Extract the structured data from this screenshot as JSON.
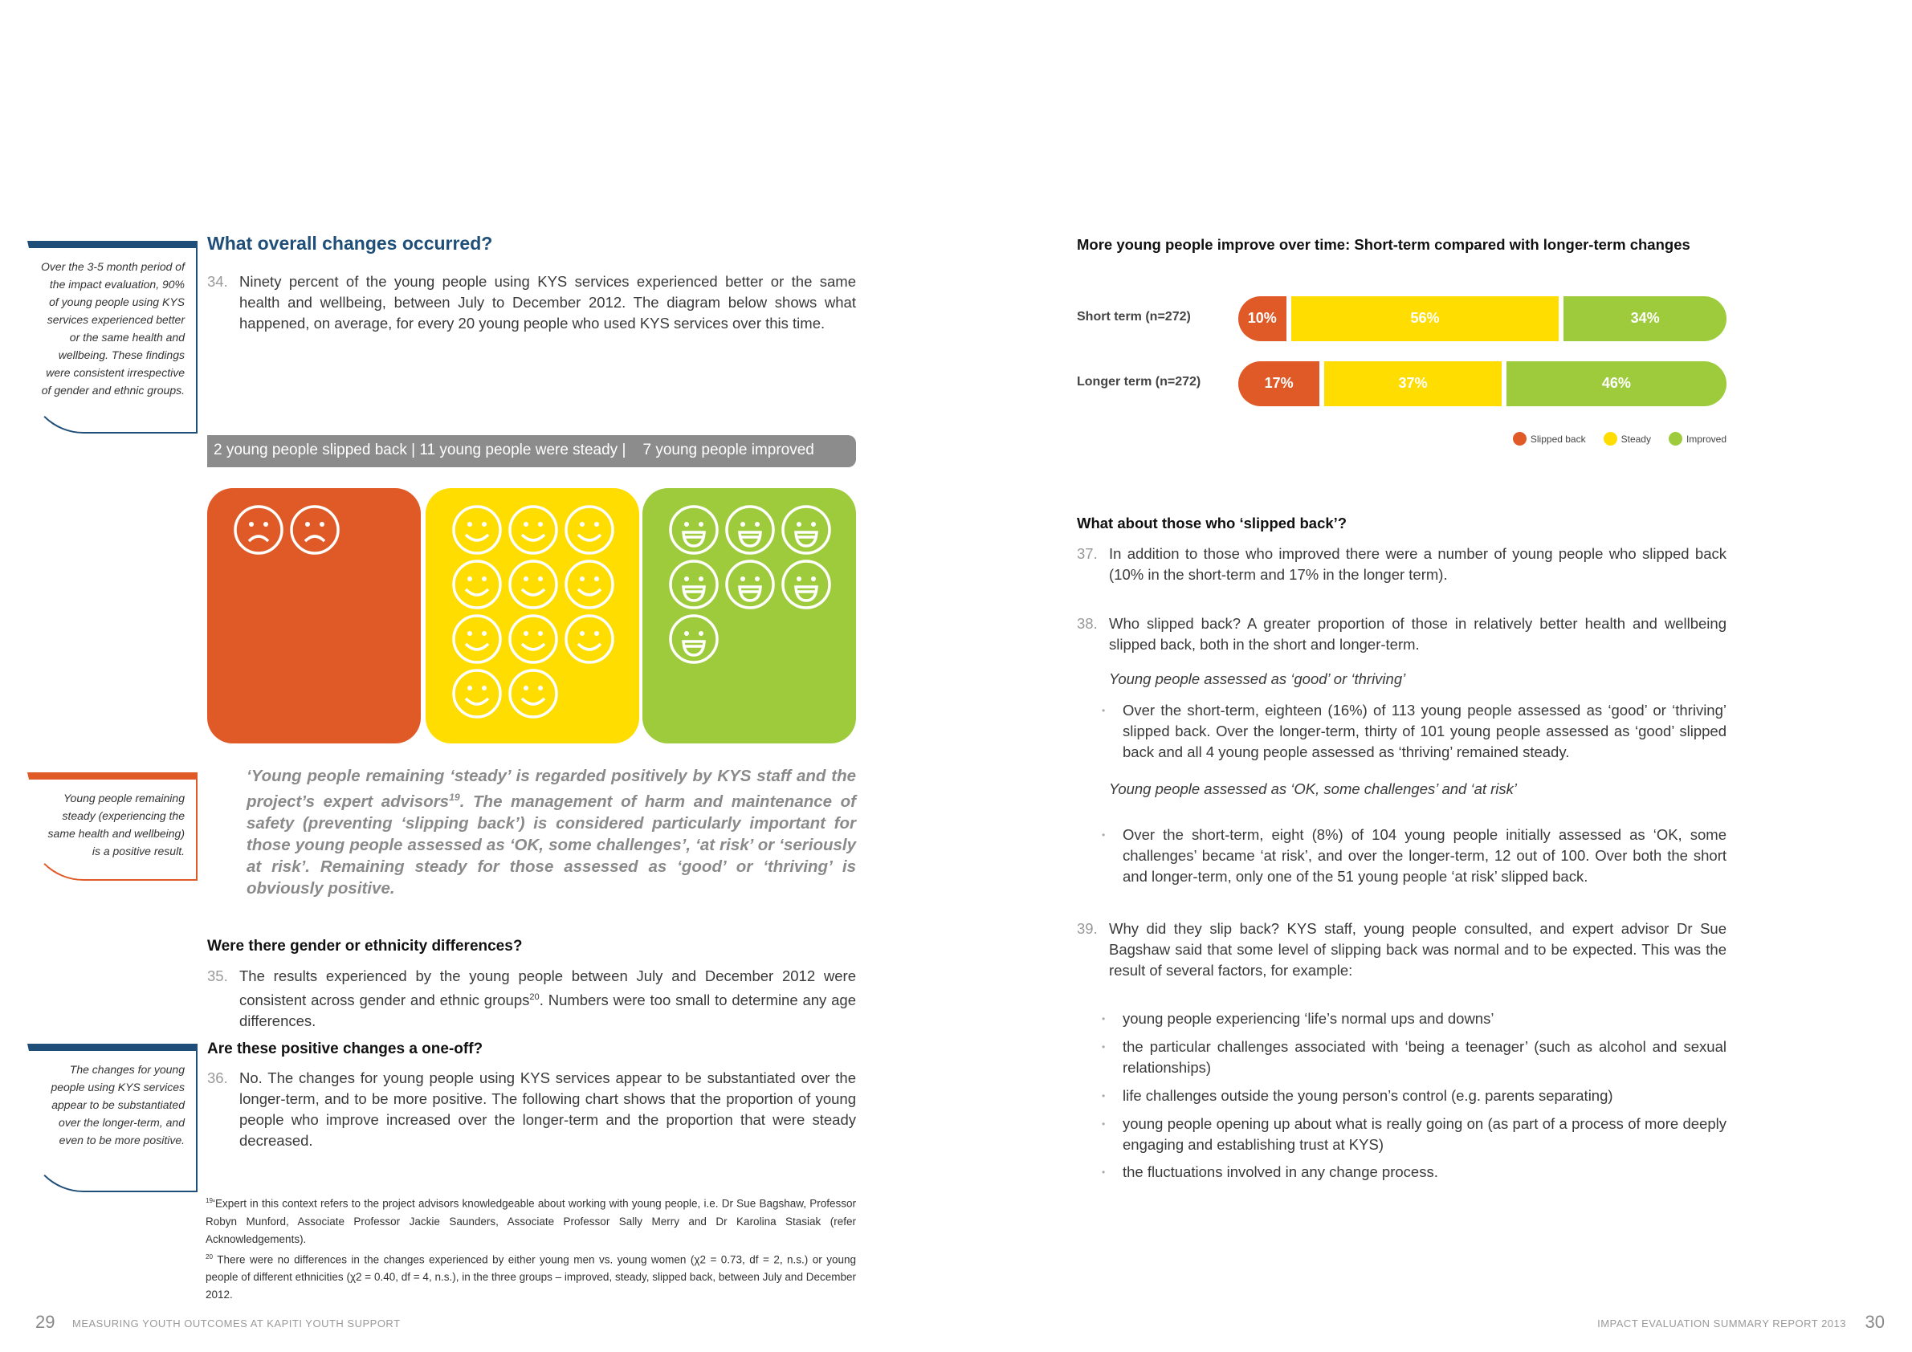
{
  "left_page": {
    "sidebars": [
      "Over the 3-5 month period of the impact evaluation, 90% of young people using KYS services experienced better or the same health and wellbeing. These findings were consistent irrespective of gender and ethnic groups.",
      "Young people remaining steady (experiencing the same health and wellbeing) is a positive result.",
      "The changes for young people using KYS services appear to be substantiated over the longer-term, and even to be more positive."
    ],
    "heading": "What overall changes occurred?",
    "para_34": {
      "number": "34.",
      "text": "Ninety percent of the young people using KYS services experienced better or the same health and wellbeing, between July to December 2012. The diagram below shows what happened, on average, for every 20 young people who used KYS services over this time."
    },
    "infographic": {
      "banner": "2 young people slipped back | 11 young people were steady |    7 young people improved",
      "groups": [
        {
          "count": 2,
          "color": "#e05a27",
          "face": "sad"
        },
        {
          "count": 11,
          "color": "#ffdd00",
          "face": "smile"
        },
        {
          "count": 7,
          "color": "#9dcb3c",
          "face": "grin"
        }
      ]
    },
    "quote": [
      "‘Young people remaining ‘steady’ is regarded positively by KYS staff and the project’s expert advisors",
      "19",
      ". The management of harm and maintenance of safety (preventing ‘slipping back’) is considered particularly important for those young people assessed as ‘OK, some challenges’, ‘at risk’ or ‘seriously at risk’. Remaining steady for those assessed as ‘good’ or ‘thriving’ is obviously positive."
    ],
    "heading_2": "Were there gender or ethnicity differences?",
    "para_35": {
      "number": "35.",
      "text": [
        "The results experienced by the young people between July and December 2012 were consistent across gender and ethnic groups",
        "20",
        ". Numbers were too small to determine any age differences."
      ]
    },
    "heading_3": "Are these positive changes a one-off?",
    "para_36": {
      "number": "36.",
      "text": "No. The changes for young people using KYS services appear to be substantiated over the longer-term, and to be more positive. The following chart shows that the proportion of young people who improve increased over the longer-term and the proportion that were steady decreased."
    },
    "footnotes": [
      {
        "mark": "19",
        "text": "‘Expert in this context refers to the project advisors knowledgeable about working with young people, i.e. Dr Sue Bagshaw, Professor Robyn Munford, Associate Professor Jackie Saunders, Associate Professor Sally Merry and Dr Karolina Stasiak (refer Acknowledgements)."
      },
      {
        "mark": "20",
        "text": "There were no differences in the changes experienced by either young men vs. young women (χ2 = 0.73, df = 2, n.s.) or young people of different ethnicities (χ2 = 0.40, df = 4, n.s.), in the three groups – improved, steady, slipped back, between July and December 2012."
      }
    ],
    "footer": {
      "page": "29",
      "text": "MEASURING YOUTH OUTCOMES AT KAPITI YOUTH SUPPORT"
    }
  },
  "chart_data": {
    "type": "stacked-bar-horizontal",
    "title": "More young people improve over time: Short-term compared with longer-term changes",
    "categories": [
      "Short term (n=272)",
      "Longer term (n=272)"
    ],
    "series": [
      {
        "name": "Slipped back",
        "color": "#e05a27",
        "values": [
          10,
          17
        ],
        "value_labels": [
          "10%",
          "17%"
        ]
      },
      {
        "name": "Steady",
        "color": "#ffdd00",
        "values": [
          56,
          37
        ],
        "value_labels": [
          "56%",
          "37%"
        ]
      },
      {
        "name": "Improved",
        "color": "#9dcb3c",
        "values": [
          34,
          46
        ],
        "value_labels": [
          "34%",
          "46%"
        ]
      }
    ],
    "legend": "bottom-right"
  },
  "right_page": {
    "heading": "What about those who ‘slipped back’?",
    "para_37": {
      "number": "37.",
      "text": "In addition to those who improved there were a number of young people who slipped back (10% in the short-term and 17% in the longer term)."
    },
    "para_38": {
      "number": "38.",
      "text": "Who slipped back? A greater proportion of those in relatively better health and wellbeing slipped back, both in the short and longer-term."
    },
    "subheading_1": "Young people assessed as ‘good’ or ‘thriving’",
    "bullet_1": "Over the short-term, eighteen (16%) of 113 young people assessed as ‘good’ or ‘thriving’ slipped back. Over the longer-term, thirty of 101 young people assessed as ‘good’ slipped back and all 4 young people assessed as ‘thriving’ remained steady.",
    "subheading_2": "Young people assessed as ‘OK, some challenges’ and ‘at risk’",
    "bullet_2": "Over the short-term, eight (8%) of 104 young people initially assessed as ‘OK, some challenges’ became ‘at risk’, and over the longer-term, 12 out of 100. Over both the short and longer-term, only one of the 51 young people ‘at risk’ slipped back.",
    "para_39": {
      "number": "39.",
      "text": "Why did they slip back? KYS staff, young people consulted, and expert advisor Dr Sue Bagshaw said that some level of slipping back was normal and to be expected. This was the result of several factors, for example:"
    },
    "factors": [
      "young people experiencing ‘life’s normal ups and downs’",
      "the particular challenges associated with ‘being a teenager’ (such as alcohol and sexual relationships)",
      "life challenges outside the young person’s control (e.g. parents separating)",
      "young people opening up about what is really going on (as part of a process of more deeply engaging and establishing trust at KYS)",
      "the fluctuations involved in any change process."
    ],
    "footer": {
      "text": "IMPACT EVALUATION SUMMARY REPORT 2013",
      "page": "30"
    }
  }
}
